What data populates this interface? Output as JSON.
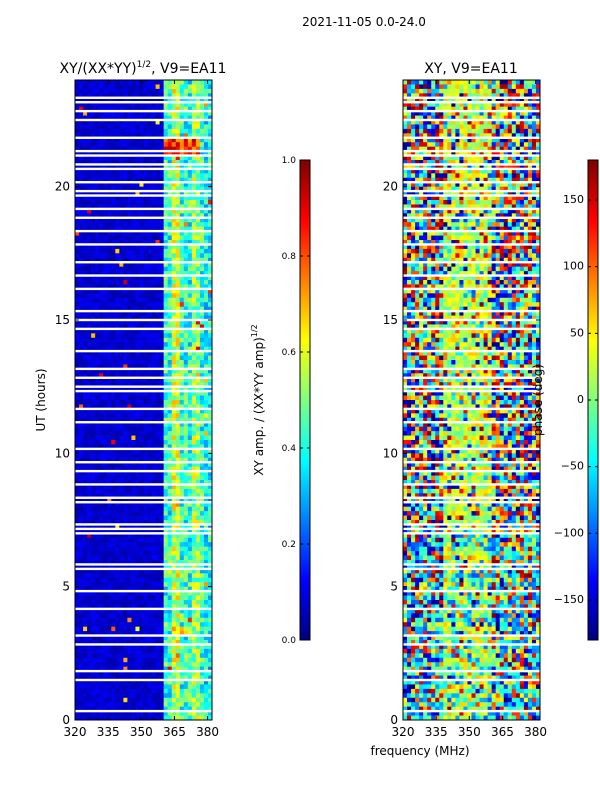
{
  "figure": {
    "suptitle": "2021-11-05 0.0-24.0",
    "xlabel": "frequency (MHz)",
    "colorscale": [
      "#00007f",
      "#0000ff",
      "#007fff",
      "#00ffff",
      "#7fff7f",
      "#ffff00",
      "#ff7f00",
      "#ff0000",
      "#7f0000"
    ]
  },
  "chart_data": [
    {
      "type": "heatmap",
      "title_main": "XY/(XX*YY)",
      "title_exp": "1/2",
      "title_tail": ", V9=EA11",
      "xlabel": "",
      "ylabel": "UT (hours)",
      "xlim": [
        320,
        382
      ],
      "ylim": [
        0,
        24
      ],
      "xticks": [
        320,
        335,
        350,
        365,
        380
      ],
      "yticks": [
        0,
        5,
        10,
        15,
        20
      ],
      "colorbar": {
        "label_main": "XY amp. / (XX*YY amp)",
        "label_exp": "1/2",
        "range": [
          0.0,
          1.0
        ],
        "ticks": [
          "0.0",
          "0.2",
          "0.4",
          "0.6",
          "0.8",
          "1.0"
        ],
        "tick_values": [
          0.0,
          0.2,
          0.4,
          0.6,
          0.8,
          1.0
        ]
      },
      "description": "Mostly low amplitude (~0.05) across the band; elevated amplitude (~0.3-0.6) in channels from ~360 to ~382 MHz; bright stripe near 21.5 UT at 360-375 MHz; flagged (white) rows at many times."
    },
    {
      "type": "heatmap",
      "title_main": "XY, V9=EA11",
      "title_exp": "",
      "title_tail": "",
      "xlabel": "",
      "ylabel": "",
      "xlim": [
        320,
        382
      ],
      "ylim": [
        0,
        24
      ],
      "xticks": [
        320,
        335,
        350,
        365,
        380
      ],
      "yticks": [
        0,
        5,
        10,
        15,
        20
      ],
      "colorbar": {
        "label_main": "phase (deg)",
        "label_exp": "",
        "range": [
          -180,
          180
        ],
        "ticks": [
          "−150",
          "−100",
          "−50",
          "0",
          "50",
          "100",
          "150"
        ],
        "tick_values": [
          -150,
          -100,
          -50,
          0,
          50,
          100,
          150
        ]
      },
      "description": "Noisy phase spanning the full range with a mostly green/yellow band around 340-360 MHz; same flagged rows."
    }
  ]
}
